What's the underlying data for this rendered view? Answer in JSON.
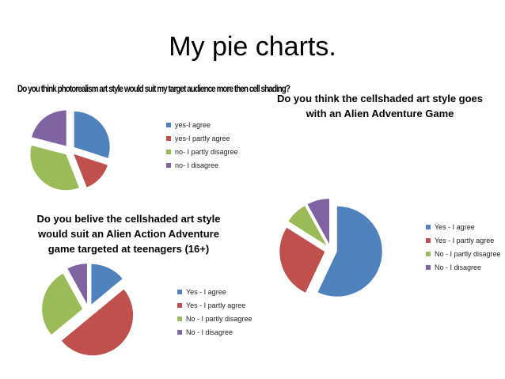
{
  "page": {
    "title": "My pie charts."
  },
  "chart_data": [
    {
      "type": "pie",
      "title": "Do you think photorealism art style would suit my target audience more then cell shading?",
      "categories": [
        "yes-I agree",
        "yes-I partly agree",
        "no- I partly disagree",
        "no- I disagree"
      ],
      "values": [
        30,
        14,
        35,
        21
      ],
      "colors": [
        "#4F81BD",
        "#C0504D",
        "#9BBB59",
        "#8064A2"
      ],
      "legend": "right"
    },
    {
      "type": "pie",
      "title": "Do you think the cellshaded art style goes with an Alien Adventure Game",
      "categories": [
        "Yes - I agree",
        "Yes -  I partly agree",
        "No - I partly disagree",
        "No - I disagree"
      ],
      "values": [
        57,
        27,
        8,
        8
      ],
      "colors": [
        "#4F81BD",
        "#C0504D",
        "#9BBB59",
        "#8064A2"
      ],
      "legend": "right"
    },
    {
      "type": "pie",
      "title": "Do you belive the cellshaded art style would suit an Alien Action Adventure game targeted at teenagers (16+)",
      "categories": [
        "Yes - I agree",
        "Yes -  I partly agree",
        "No - I partly disagree",
        "No - I disagree"
      ],
      "values": [
        14,
        50,
        28,
        8
      ],
      "colors": [
        "#4F81BD",
        "#C0504D",
        "#9BBB59",
        "#8064A2"
      ],
      "legend": "right"
    }
  ]
}
